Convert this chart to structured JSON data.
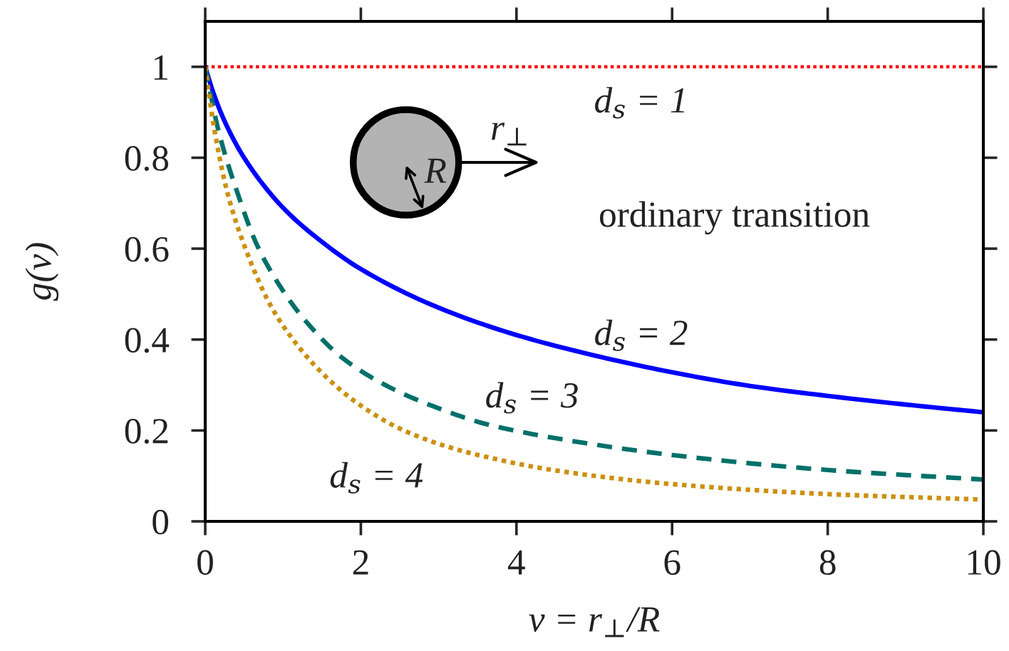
{
  "chart_data": {
    "type": "line",
    "xlabel": "v = r$_{⊥}$/R",
    "ylabel": "g(v)",
    "xlim": [
      0,
      10
    ],
    "ylim": [
      0,
      1.1
    ],
    "xticks": [
      0,
      2,
      4,
      6,
      8,
      10
    ],
    "yticks": [
      0,
      0.2,
      0.4,
      0.6,
      0.8,
      1
    ],
    "annotations": [
      "ordinary transition",
      "R",
      "r$_{⊥}$"
    ],
    "series": [
      {
        "name": "d$_{s}$ = 1",
        "color": "#ff0000",
        "line_style": "dotted",
        "x": [
          0,
          10
        ],
        "values": [
          1,
          1
        ]
      },
      {
        "name": "d$_{s}$ = 2",
        "color": "#0000ff",
        "line_style": "solid",
        "x": [
          0,
          0.1,
          0.25,
          0.5,
          1,
          1.5,
          2,
          3,
          4,
          5,
          6,
          7,
          8,
          9,
          10
        ],
        "values": [
          1.0,
          0.945,
          0.88,
          0.8,
          0.69,
          0.615,
          0.555,
          0.47,
          0.41,
          0.365,
          0.328,
          0.298,
          0.276,
          0.257,
          0.24
        ]
      },
      {
        "name": "d$_{s}$ = 3",
        "color": "#00706a",
        "line_style": "dashed",
        "x": [
          0,
          0.17,
          0.42,
          0.66,
          0.97,
          1.27,
          1.76,
          2.37,
          2.98,
          3.59,
          4.5,
          6,
          8,
          10
        ],
        "values": [
          1.0,
          0.86,
          0.72,
          0.61,
          0.515,
          0.445,
          0.36,
          0.295,
          0.25,
          0.215,
          0.183,
          0.146,
          0.113,
          0.092
        ]
      },
      {
        "name": "d$_{s}$ = 4",
        "color": "#cc9010",
        "line_style": "dotted",
        "x": [
          0,
          0.11,
          0.29,
          0.54,
          0.84,
          1.15,
          1.51,
          1.94,
          2.49,
          3.1,
          3.71,
          4.5,
          6,
          8,
          10
        ],
        "values": [
          1.0,
          0.87,
          0.72,
          0.59,
          0.475,
          0.395,
          0.325,
          0.262,
          0.205,
          0.165,
          0.138,
          0.112,
          0.082,
          0.06,
          0.048
        ]
      }
    ]
  }
}
